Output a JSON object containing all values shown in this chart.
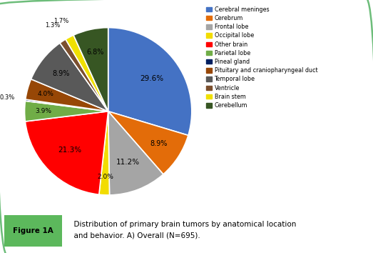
{
  "labels": [
    "Cerebral meninges",
    "Cerebrum",
    "Frontal lobe",
    "Occipital lobe",
    "Other brain",
    "Parietal lobe",
    "Pineal gland",
    "Pituitary and craniopharyngeal duct",
    "Temporal lobe",
    "Ventricle",
    "Brain stem",
    "Cerebellum"
  ],
  "values": [
    29.6,
    8.9,
    11.2,
    2.0,
    21.3,
    3.9,
    0.3,
    4.0,
    8.9,
    1.3,
    1.7,
    6.8
  ],
  "colors": [
    "#4472C4",
    "#E36C09",
    "#A5A5A5",
    "#F2DC00",
    "#FF0000",
    "#70AD47",
    "#002060",
    "#974706",
    "#595959",
    "#7B4F2E",
    "#F0E000",
    "#375623"
  ],
  "pct_labels": [
    "29.6%",
    "8.9%",
    "11.2%",
    "2.0%",
    "21.3%",
    "3.9%",
    "0.3%",
    "4.0%",
    "8.9%",
    "1.3%",
    "1.7%",
    "6.8%"
  ],
  "figure_label": "A",
  "caption_label": "Figure 1A",
  "caption_text": "  Distribution of primary brain tumors by anatomical location\n  and behavior. A) Overall (N=695).",
  "background_color": "#FFFFFF",
  "border_color": "#6DBD7A",
  "caption_bg": "#D8F0D8",
  "caption_label_bg": "#5CB85C"
}
